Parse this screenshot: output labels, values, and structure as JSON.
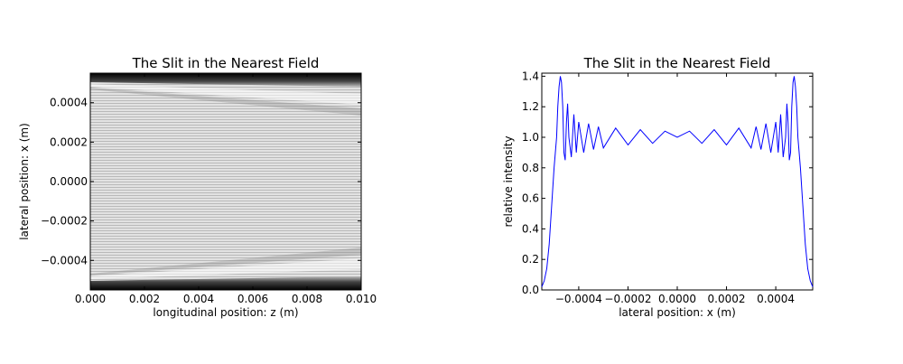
{
  "chart_data": [
    {
      "type": "heatmap",
      "title": "The Slit in the Nearest Field",
      "xlabel": "longitudinal position: z (m)",
      "ylabel": "lateral position: x (m)",
      "xlim": [
        0.0,
        0.01
      ],
      "ylim": [
        -0.00055,
        0.00055
      ],
      "x_ticks": [
        0.0,
        0.002,
        0.004,
        0.006,
        0.008,
        0.01
      ],
      "x_tick_labels": [
        "0.000",
        "0.002",
        "0.004",
        "0.006",
        "0.008",
        "0.010"
      ],
      "y_ticks": [
        -0.0004,
        -0.0002,
        0.0,
        0.0002,
        0.0004
      ],
      "y_tick_labels": [
        "−0.0004",
        "−0.0002",
        "0.0000",
        "0.0002",
        "0.0004"
      ],
      "slit_half_width": 0.0005,
      "colormap": "gray",
      "grid": false
    },
    {
      "type": "line",
      "title": "The Slit in the Nearest Field",
      "xlabel": "lateral position: x (m)",
      "ylabel": "relative intensity",
      "xlim": [
        -0.00055,
        0.00055
      ],
      "ylim": [
        0.0,
        1.42
      ],
      "x_ticks": [
        -0.0004,
        -0.0002,
        0.0,
        0.0002,
        0.0004
      ],
      "x_tick_labels": [
        "−0.0004",
        "−0.0002",
        "0.0000",
        "0.0002",
        "0.0004"
      ],
      "y_ticks": [
        0.0,
        0.2,
        0.4,
        0.6,
        0.8,
        1.0,
        1.2,
        1.4
      ],
      "y_tick_labels": [
        "0.0",
        "0.2",
        "0.4",
        "0.6",
        "0.8",
        "1.0",
        "1.2",
        "1.4"
      ],
      "series": [
        {
          "color": "#0000ff",
          "x": [
            -0.00055,
            -0.00054,
            -0.00053,
            -0.00052,
            -0.00051,
            -0.0005,
            -0.00049,
            -0.000485,
            -0.00048,
            -0.000475,
            -0.00047,
            -0.000465,
            -0.00046,
            -0.000455,
            -0.00045,
            -0.000445,
            -0.00044,
            -0.00043,
            -0.00042,
            -0.00041,
            -0.0004,
            -0.00038,
            -0.00036,
            -0.00034,
            -0.00032,
            -0.0003,
            -0.00025,
            -0.0002,
            -0.00015,
            -0.0001,
            -5e-05,
            0.0,
            5e-05,
            0.0001,
            0.00015,
            0.0002,
            0.00025,
            0.0003,
            0.00032,
            0.00034,
            0.00036,
            0.00038,
            0.0004,
            0.00041,
            0.00042,
            0.00043,
            0.00044,
            0.000445,
            0.00045,
            0.000455,
            0.00046,
            0.000465,
            0.00047,
            0.000475,
            0.00048,
            0.000485,
            0.00049,
            0.0005,
            0.00051,
            0.00052,
            0.00053,
            0.00054,
            0.00055
          ],
          "y": [
            0.02,
            0.06,
            0.14,
            0.3,
            0.55,
            0.8,
            1.0,
            1.2,
            1.33,
            1.4,
            1.36,
            1.2,
            0.9,
            0.85,
            1.1,
            1.22,
            1.0,
            0.87,
            1.15,
            0.9,
            1.1,
            0.9,
            1.09,
            0.92,
            1.07,
            0.93,
            1.06,
            0.95,
            1.05,
            0.96,
            1.04,
            1.0,
            1.04,
            0.96,
            1.05,
            0.95,
            1.06,
            0.93,
            1.07,
            0.92,
            1.09,
            0.9,
            1.1,
            0.9,
            1.15,
            0.87,
            1.0,
            1.22,
            1.1,
            0.85,
            0.9,
            1.2,
            1.36,
            1.4,
            1.33,
            1.2,
            1.0,
            0.8,
            0.55,
            0.3,
            0.14,
            0.06,
            0.02
          ]
        }
      ],
      "grid": false
    }
  ]
}
